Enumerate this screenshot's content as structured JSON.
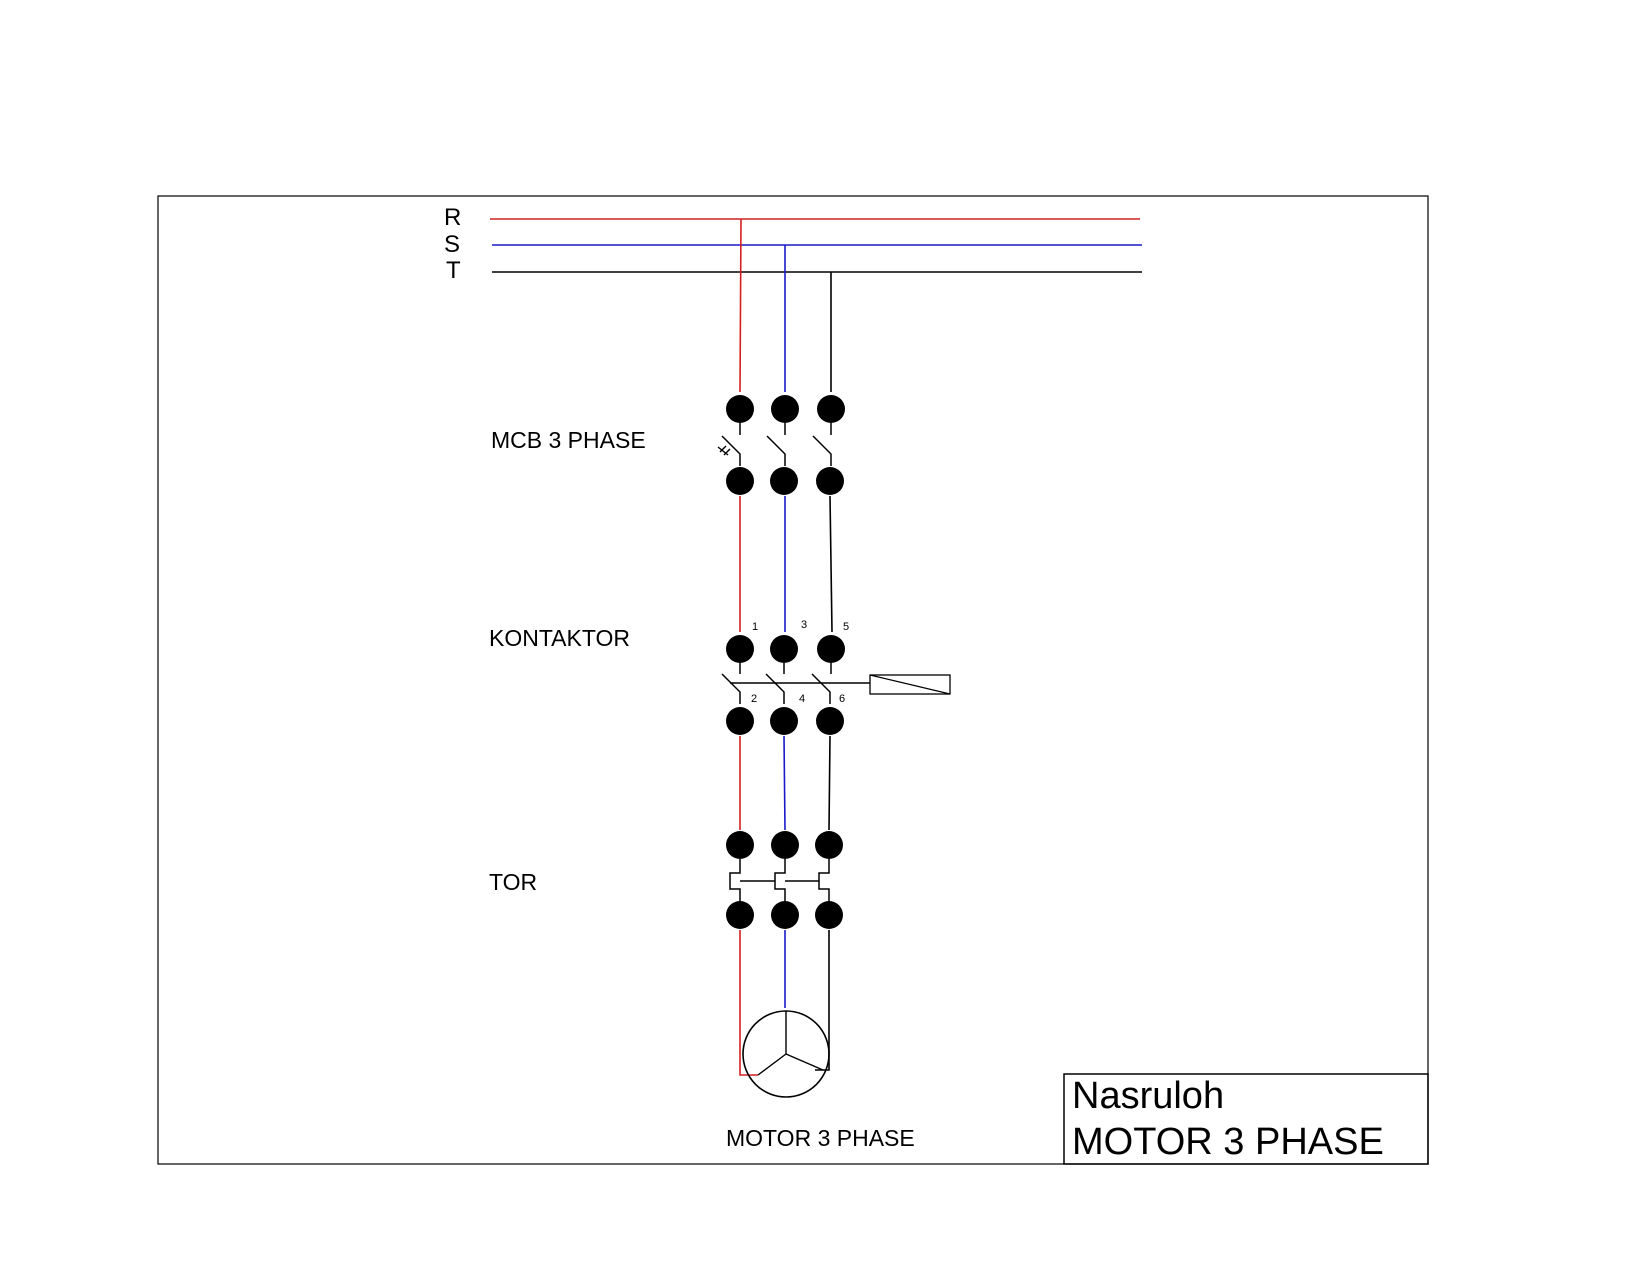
{
  "phases": {
    "r": {
      "label": "R",
      "color": "#d42020"
    },
    "s": {
      "label": "S",
      "color": "#1a1ac8"
    },
    "t": {
      "label": "T",
      "color": "#000000"
    }
  },
  "components": {
    "mcb": {
      "label": "MCB 3 PHASE"
    },
    "contactor": {
      "label": "KONTAKTOR",
      "terminals_top": [
        "1",
        "3",
        "5"
      ],
      "terminals_bottom": [
        "2",
        "4",
        "6"
      ]
    },
    "tor": {
      "label": "TOR"
    },
    "motor": {
      "label": "MOTOR 3 PHASE"
    }
  },
  "title_block": {
    "author": "Nasruloh",
    "title": "MOTOR 3 PHASE"
  }
}
